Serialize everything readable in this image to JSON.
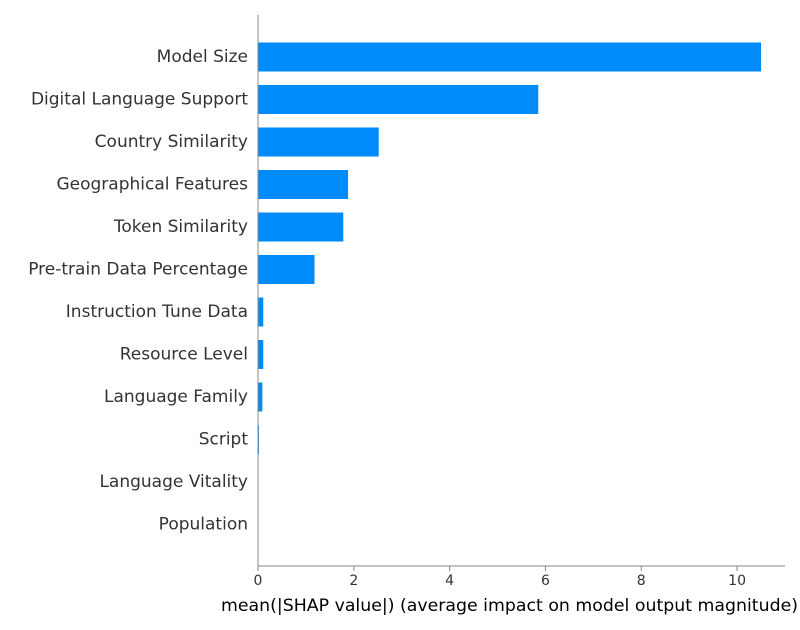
{
  "chart_data": {
    "type": "bar",
    "orientation": "horizontal",
    "categories": [
      "Model Size",
      "Digital Language Support",
      "Country Similarity",
      "Geographical Features",
      "Token Similarity",
      "Pre-train Data Percentage",
      "Instruction Tune Data",
      "Resource Level",
      "Language Family",
      "Script",
      "Language Vitality",
      "Population"
    ],
    "values": [
      10.5,
      5.85,
      2.52,
      1.88,
      1.78,
      1.18,
      0.11,
      0.11,
      0.09,
      0.02,
      0.0,
      0.0
    ],
    "xlabel": "mean(|SHAP value|) (average impact on model output magnitude)",
    "xlim": [
      0,
      11
    ],
    "xticks": [
      0,
      2,
      4,
      6,
      8,
      10
    ],
    "grid": false,
    "bar_color": "#008bfb",
    "axis_color": "#888888"
  }
}
